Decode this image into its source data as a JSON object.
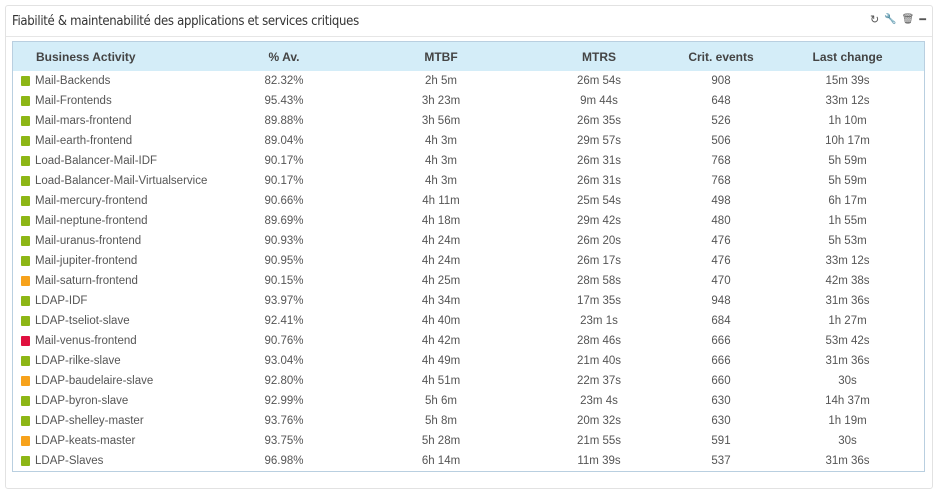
{
  "widget": {
    "title": "Fiabilité & maintenabilité des applications et services critiques",
    "tools": [
      {
        "name": "refresh-icon",
        "glyph": "↻"
      },
      {
        "name": "wrench-icon",
        "glyph": "🔧"
      },
      {
        "name": "trash-icon",
        "glyph": "🗑"
      },
      {
        "name": "minimize-icon",
        "glyph": "━"
      }
    ]
  },
  "colors": {
    "ok": "#8db616",
    "warning": "#f7a21b",
    "critical": "#e0103f",
    "header_bg": "#d4edf8"
  },
  "table": {
    "headers": [
      "Business Activity",
      "% Av.",
      "MTBF",
      "MTRS",
      "Crit. events",
      "Last change"
    ],
    "rows": [
      {
        "status": "ok",
        "name": "Mail-Backends",
        "av": "82.32%",
        "mtbf": "2h 5m",
        "mtrs": "26m 54s",
        "events": "908",
        "last": "15m 39s"
      },
      {
        "status": "ok",
        "name": "Mail-Frontends",
        "av": "95.43%",
        "mtbf": "3h 23m",
        "mtrs": "9m 44s",
        "events": "648",
        "last": "33m 12s"
      },
      {
        "status": "ok",
        "name": "Mail-mars-frontend",
        "av": "89.88%",
        "mtbf": "3h 56m",
        "mtrs": "26m 35s",
        "events": "526",
        "last": "1h 10m"
      },
      {
        "status": "ok",
        "name": "Mail-earth-frontend",
        "av": "89.04%",
        "mtbf": "4h 3m",
        "mtrs": "29m 57s",
        "events": "506",
        "last": "10h 17m"
      },
      {
        "status": "ok",
        "name": "Load-Balancer-Mail-IDF",
        "av": "90.17%",
        "mtbf": "4h 3m",
        "mtrs": "26m 31s",
        "events": "768",
        "last": "5h 59m"
      },
      {
        "status": "ok",
        "name": "Load-Balancer-Mail-Virtualservice",
        "av": "90.17%",
        "mtbf": "4h 3m",
        "mtrs": "26m 31s",
        "events": "768",
        "last": "5h 59m"
      },
      {
        "status": "ok",
        "name": "Mail-mercury-frontend",
        "av": "90.66%",
        "mtbf": "4h 11m",
        "mtrs": "25m 54s",
        "events": "498",
        "last": "6h 17m"
      },
      {
        "status": "ok",
        "name": "Mail-neptune-frontend",
        "av": "89.69%",
        "mtbf": "4h 18m",
        "mtrs": "29m 42s",
        "events": "480",
        "last": "1h 55m"
      },
      {
        "status": "ok",
        "name": "Mail-uranus-frontend",
        "av": "90.93%",
        "mtbf": "4h 24m",
        "mtrs": "26m 20s",
        "events": "476",
        "last": "5h 53m"
      },
      {
        "status": "ok",
        "name": "Mail-jupiter-frontend",
        "av": "90.95%",
        "mtbf": "4h 24m",
        "mtrs": "26m 17s",
        "events": "476",
        "last": "33m 12s"
      },
      {
        "status": "warning",
        "name": "Mail-saturn-frontend",
        "av": "90.15%",
        "mtbf": "4h 25m",
        "mtrs": "28m 58s",
        "events": "470",
        "last": "42m 38s"
      },
      {
        "status": "ok",
        "name": "LDAP-IDF",
        "av": "93.97%",
        "mtbf": "4h 34m",
        "mtrs": "17m 35s",
        "events": "948",
        "last": "31m 36s"
      },
      {
        "status": "ok",
        "name": "LDAP-tseliot-slave",
        "av": "92.41%",
        "mtbf": "4h 40m",
        "mtrs": "23m 1s",
        "events": "684",
        "last": "1h 27m"
      },
      {
        "status": "critical",
        "name": "Mail-venus-frontend",
        "av": "90.76%",
        "mtbf": "4h 42m",
        "mtrs": "28m 46s",
        "events": "666",
        "last": "53m 42s"
      },
      {
        "status": "ok",
        "name": "LDAP-rilke-slave",
        "av": "93.04%",
        "mtbf": "4h 49m",
        "mtrs": "21m 40s",
        "events": "666",
        "last": "31m 36s"
      },
      {
        "status": "warning",
        "name": "LDAP-baudelaire-slave",
        "av": "92.80%",
        "mtbf": "4h 51m",
        "mtrs": "22m 37s",
        "events": "660",
        "last": "30s"
      },
      {
        "status": "ok",
        "name": "LDAP-byron-slave",
        "av": "92.99%",
        "mtbf": "5h 6m",
        "mtrs": "23m 4s",
        "events": "630",
        "last": "14h 37m"
      },
      {
        "status": "ok",
        "name": "LDAP-shelley-master",
        "av": "93.76%",
        "mtbf": "5h 8m",
        "mtrs": "20m 32s",
        "events": "630",
        "last": "1h 19m"
      },
      {
        "status": "warning",
        "name": "LDAP-keats-master",
        "av": "93.75%",
        "mtbf": "5h 28m",
        "mtrs": "21m 55s",
        "events": "591",
        "last": "30s"
      },
      {
        "status": "ok",
        "name": "LDAP-Slaves",
        "av": "96.98%",
        "mtbf": "6h 14m",
        "mtrs": "11m 39s",
        "events": "537",
        "last": "31m 36s"
      }
    ]
  }
}
